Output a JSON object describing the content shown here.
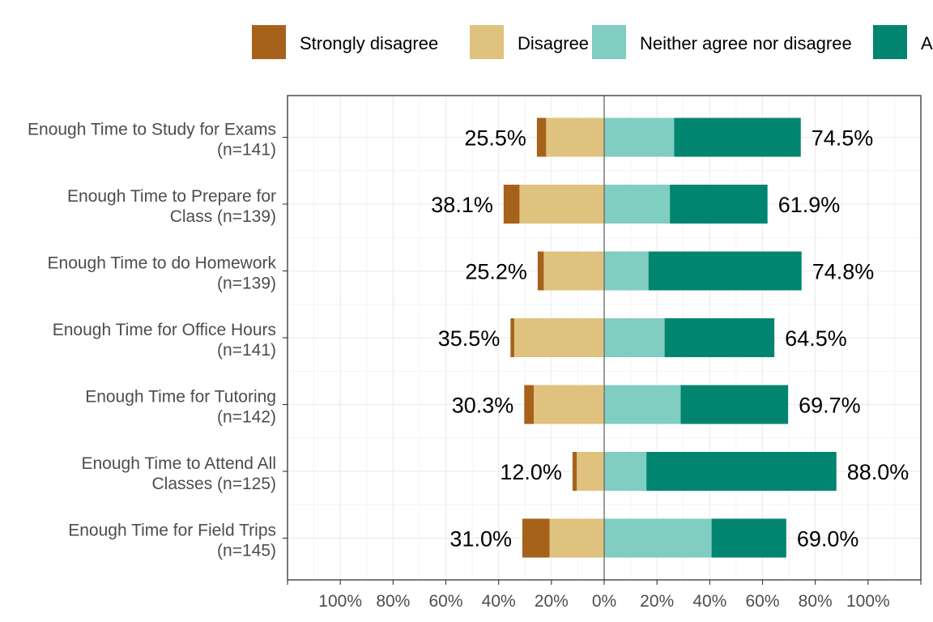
{
  "chart_data": {
    "type": "bar",
    "orientation": "horizontal-diverging",
    "legend": {
      "position": "top",
      "items": [
        {
          "key": "strongly_disagree",
          "label": "Strongly disagree",
          "color": "#a6611a"
        },
        {
          "key": "disagree",
          "label": "Disagree",
          "color": "#dfc27d"
        },
        {
          "key": "neither",
          "label": "Neither agree nor disagree",
          "color": "#80cdc1"
        },
        {
          "key": "agree",
          "label": "Agree",
          "color": "#018571"
        }
      ]
    },
    "x_ticks": [
      "100%",
      "80%",
      "60%",
      "40%",
      "20%",
      "0%",
      "20%",
      "40%",
      "60%",
      "80%",
      "100%"
    ],
    "xlim": [
      -120,
      120
    ],
    "grid": true,
    "categories": [
      {
        "label": "Enough Time to Study for Exams (n=141)",
        "strongly_disagree": 3.5,
        "disagree": 22.0,
        "neither": 26.5,
        "agree": 48.0,
        "left_pct": "25.5%",
        "right_pct": "74.5%"
      },
      {
        "label": "Enough Time to Prepare for Class (n=139)",
        "strongly_disagree": 6.0,
        "disagree": 32.1,
        "neither": 24.9,
        "agree": 37.0,
        "left_pct": "38.1%",
        "right_pct": "61.9%"
      },
      {
        "label": "Enough Time to do Homework (n=139)",
        "strongly_disagree": 2.3,
        "disagree": 22.9,
        "neither": 16.8,
        "agree": 58.0,
        "left_pct": "25.2%",
        "right_pct": "74.8%"
      },
      {
        "label": "Enough Time for Office Hours (n=141)",
        "strongly_disagree": 1.4,
        "disagree": 34.1,
        "neither": 22.9,
        "agree": 41.6,
        "left_pct": "35.5%",
        "right_pct": "64.5%"
      },
      {
        "label": "Enough Time for Tutoring (n=142)",
        "strongly_disagree": 3.6,
        "disagree": 26.7,
        "neither": 29.0,
        "agree": 40.7,
        "left_pct": "30.3%",
        "right_pct": "69.7%"
      },
      {
        "label": "Enough Time to Attend All Classes (n=125)",
        "strongly_disagree": 1.6,
        "disagree": 10.4,
        "neither": 16.0,
        "agree": 72.0,
        "left_pct": "12.0%",
        "right_pct": "88.0%"
      },
      {
        "label": "Enough Time for Field Trips (n=145)",
        "strongly_disagree": 10.3,
        "disagree": 20.7,
        "neither": 40.7,
        "agree": 28.3,
        "left_pct": "31.0%",
        "right_pct": "69.0%"
      }
    ],
    "category_label_lines": [
      [
        "Enough Time to Study for Exams",
        "(n=141)"
      ],
      [
        "Enough Time to Prepare for",
        "Class (n=139)"
      ],
      [
        "Enough Time to do Homework",
        "(n=139)"
      ],
      [
        "Enough Time for Office Hours",
        "(n=141)"
      ],
      [
        "Enough Time for Tutoring",
        "(n=142)"
      ],
      [
        "Enough Time to Attend All",
        "Classes (n=125)"
      ],
      [
        "Enough Time for Field Trips",
        "(n=145)"
      ]
    ]
  }
}
